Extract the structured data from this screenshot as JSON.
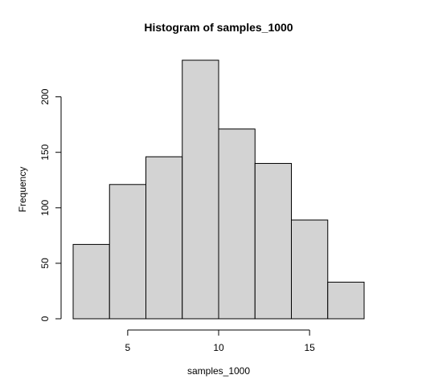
{
  "chart_data": {
    "type": "bar",
    "title": "Histogram of samples_1000",
    "xlabel": "samples_1000",
    "ylabel": "Frequency",
    "bins": [
      {
        "start": 2,
        "end": 4,
        "count": 67
      },
      {
        "start": 4,
        "end": 6,
        "count": 121
      },
      {
        "start": 6,
        "end": 8,
        "count": 146
      },
      {
        "start": 8,
        "end": 10,
        "count": 233
      },
      {
        "start": 10,
        "end": 12,
        "count": 171
      },
      {
        "start": 12,
        "end": 14,
        "count": 140
      },
      {
        "start": 14,
        "end": 16,
        "count": 89
      },
      {
        "start": 16,
        "end": 18,
        "count": 33
      }
    ],
    "xticks": [
      5,
      10,
      15
    ],
    "yticks": [
      0,
      50,
      100,
      150,
      200
    ],
    "xlim": [
      2,
      18
    ],
    "ylim": [
      0,
      233
    ],
    "bar_fill": "#d3d3d3",
    "grid": false
  }
}
